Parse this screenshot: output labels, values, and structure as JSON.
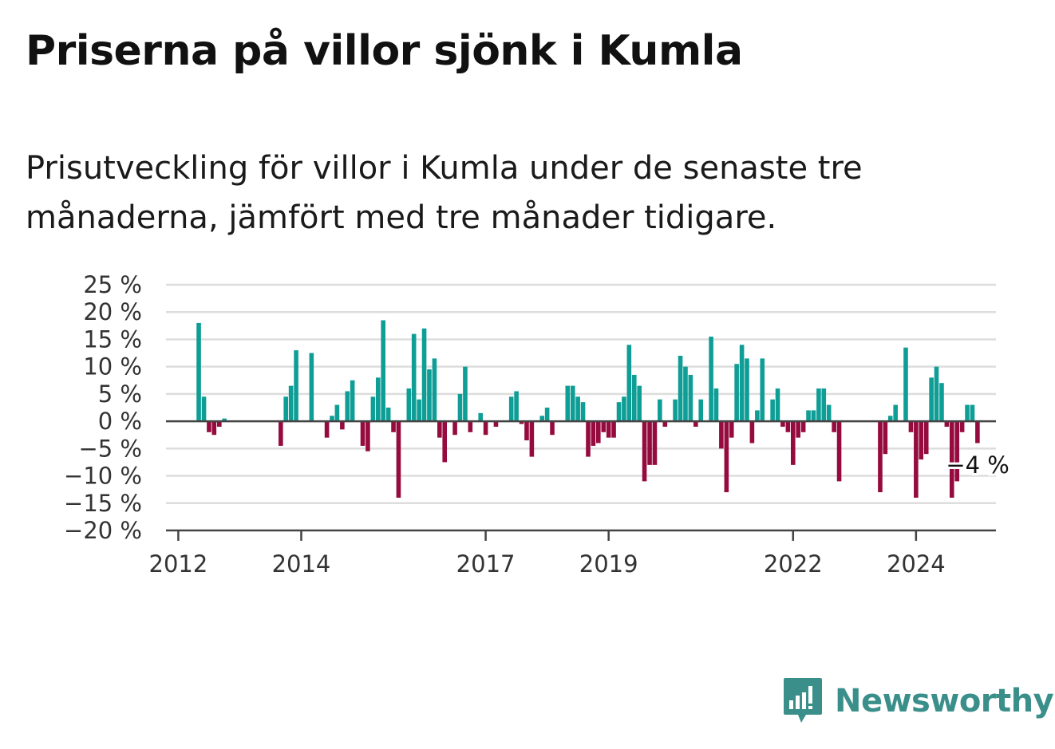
{
  "title": "Priserna på villor sjönk i Kumla",
  "subtitle": "Prisutveckling för villor i Kumla under de senaste tre månaderna, jämfört med tre månader tidigare.",
  "brand": "Newsworthy",
  "colors": {
    "positive": "#0e9e96",
    "negative": "#960b3e",
    "grid": "#dddddd",
    "axis": "#444444",
    "brand": "#3a8f8a"
  },
  "chart_data": {
    "type": "bar",
    "ylim": [
      -20,
      25
    ],
    "y_ticks": [
      -20,
      -15,
      -10,
      -5,
      0,
      5,
      10,
      15,
      20,
      25
    ],
    "y_tick_labels": [
      "−20 %",
      "−15 %",
      "−10 %",
      "−5 %",
      "0 %",
      "5 %",
      "10 %",
      "15 %",
      "20 %",
      "25 %"
    ],
    "x_ticks": [
      2012,
      2014,
      2017,
      2019,
      2022,
      2024
    ],
    "x_tick_labels": [
      "2012",
      "2014",
      "2017",
      "2019",
      "2022",
      "2024"
    ],
    "grid": true,
    "annotation": {
      "text": "−4 %",
      "value": -4
    },
    "x": [
      2012.333,
      2012.417,
      2012.5,
      2012.583,
      2012.667,
      2012.75,
      2013.667,
      2013.75,
      2013.833,
      2013.917,
      2014.167,
      2014.417,
      2014.5,
      2014.583,
      2014.667,
      2014.75,
      2014.833,
      2015.0,
      2015.083,
      2015.167,
      2015.25,
      2015.333,
      2015.417,
      2015.5,
      2015.583,
      2015.75,
      2015.833,
      2015.917,
      2016.0,
      2016.083,
      2016.167,
      2016.25,
      2016.333,
      2016.5,
      2016.583,
      2016.667,
      2016.75,
      2016.917,
      2017.0,
      2017.167,
      2017.417,
      2017.5,
      2017.583,
      2017.667,
      2017.75,
      2017.917,
      2018.0,
      2018.083,
      2018.333,
      2018.417,
      2018.5,
      2018.583,
      2018.667,
      2018.75,
      2018.833,
      2018.917,
      2019.0,
      2019.083,
      2019.167,
      2019.25,
      2019.333,
      2019.417,
      2019.5,
      2019.583,
      2019.667,
      2019.75,
      2019.833,
      2019.917,
      2020.083,
      2020.167,
      2020.25,
      2020.333,
      2020.417,
      2020.5,
      2020.667,
      2020.75,
      2020.833,
      2020.917,
      2021.0,
      2021.083,
      2021.167,
      2021.25,
      2021.333,
      2021.417,
      2021.5,
      2021.667,
      2021.75,
      2021.833,
      2021.917,
      2022.0,
      2022.083,
      2022.167,
      2022.25,
      2022.333,
      2022.417,
      2022.5,
      2022.583,
      2022.667,
      2022.75,
      2023.417,
      2023.5,
      2023.583,
      2023.667,
      2023.833,
      2023.917,
      2024.0,
      2024.083,
      2024.167,
      2024.25,
      2024.333,
      2024.417,
      2024.5,
      2024.583,
      2024.667,
      2024.75,
      2024.833,
      2024.917,
      2025.0
    ],
    "values": [
      18,
      4.5,
      -2,
      -2.5,
      -1,
      0.5,
      -4.5,
      4.5,
      6.5,
      13,
      12.5,
      -3,
      1,
      3,
      -1.5,
      5.5,
      7.5,
      -4.5,
      -5.5,
      4.5,
      8,
      18.5,
      2.5,
      -2,
      -14,
      6,
      16,
      4,
      17,
      9.5,
      11.5,
      -3,
      -7.5,
      -2.5,
      5,
      10,
      -2,
      1.5,
      -2.5,
      -1,
      4.5,
      5.5,
      -0.5,
      -3.5,
      -6.5,
      1,
      2.5,
      -2.5,
      6.5,
      6.5,
      4.5,
      3.5,
      -6.5,
      -4.5,
      -4,
      -2,
      -3,
      -3,
      3.5,
      4.5,
      14,
      8.5,
      6.5,
      -11,
      -8,
      -8,
      4,
      -1,
      4,
      12,
      10,
      8.5,
      -1,
      4,
      15.5,
      6,
      -5,
      -13,
      -3,
      10.5,
      14,
      11.5,
      -4,
      2,
      11.5,
      4,
      6,
      -1,
      -2,
      -8,
      -3,
      -2,
      2,
      2,
      6,
      6,
      3,
      -2,
      -11,
      -13,
      -6,
      1,
      3,
      13.5,
      -2,
      -14,
      -7,
      -6,
      8,
      10,
      7,
      -1,
      -14,
      -11,
      -2,
      3,
      3,
      -4
    ]
  }
}
